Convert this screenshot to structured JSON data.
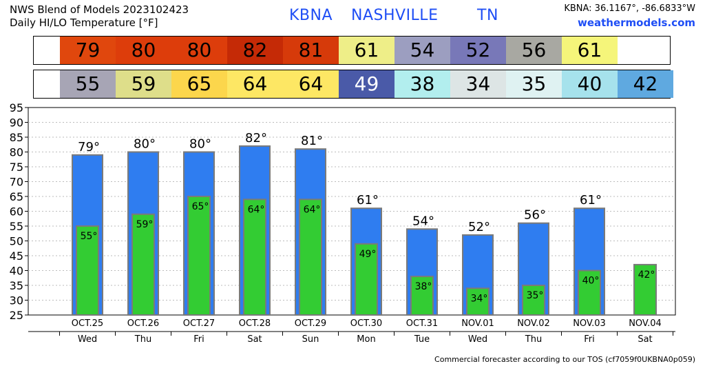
{
  "header": {
    "title_line1": "NWS Blend of Models 2023102423",
    "title_line2": "Daily HI/LO Temperature [°F]",
    "station": "KBNA",
    "city": "NASHVILLE",
    "state": "TN",
    "coords": "KBNA: 36.1167°, -86.6833°W",
    "site": "weathermodels.com"
  },
  "footer": "Commercial forecaster according to our TOS (cf7059f0UKBNA0p059)",
  "colors": {
    "high_bar": "#2f7df0",
    "low_bar": "#33cc33",
    "bar_edge": "#7a7a7a",
    "grid": "#bbbbbb"
  },
  "high_band": [
    {
      "value": "79",
      "color": "#e0470d"
    },
    {
      "value": "80",
      "color": "#dd3d0b"
    },
    {
      "value": "80",
      "color": "#dd3d0b"
    },
    {
      "value": "82",
      "color": "#c52a06"
    },
    {
      "value": "81",
      "color": "#d63a0a"
    },
    {
      "value": "61",
      "color": "#eeee88"
    },
    {
      "value": "54",
      "color": "#9c9ec0"
    },
    {
      "value": "52",
      "color": "#7878b8"
    },
    {
      "value": "56",
      "color": "#a8a8a2"
    },
    {
      "value": "61",
      "color": "#f5f57a"
    }
  ],
  "low_band": [
    {
      "value": "55",
      "color": "#a7a5b5"
    },
    {
      "value": "59",
      "color": "#dede8a"
    },
    {
      "value": "65",
      "color": "#fcd64c"
    },
    {
      "value": "64",
      "color": "#fde764"
    },
    {
      "value": "64",
      "color": "#fde764"
    },
    {
      "value": "49",
      "color": "#4a5aa8",
      "text_light": true
    },
    {
      "value": "38",
      "color": "#b2eeee"
    },
    {
      "value": "34",
      "color": "#dde5e5"
    },
    {
      "value": "35",
      "color": "#dff2f2"
    },
    {
      "value": "40",
      "color": "#a6e2ec"
    },
    {
      "value": "42",
      "color": "#5fa9e0"
    }
  ],
  "chart_data": {
    "type": "bar",
    "title": "Daily HI/LO Temperature [°F]",
    "xlabel": "",
    "ylabel": "",
    "ylim": [
      25,
      95
    ],
    "yticks": [
      25,
      30,
      35,
      40,
      45,
      50,
      55,
      60,
      65,
      70,
      75,
      80,
      85,
      90,
      95
    ],
    "grid": true,
    "categories": [
      "OCT.25",
      "OCT.26",
      "OCT.27",
      "OCT.28",
      "OCT.29",
      "OCT.30",
      "OCT.31",
      "NOV.01",
      "NOV.02",
      "NOV.03",
      "NOV.04"
    ],
    "weekdays": [
      "Wed",
      "Thu",
      "Fri",
      "Sat",
      "Sun",
      "Mon",
      "Tue",
      "Wed",
      "Thu",
      "Fri",
      "Sat"
    ],
    "degree_symbol": "°",
    "series": [
      {
        "values": [
          79,
          80,
          80,
          82,
          81,
          61,
          54,
          52,
          56,
          61,
          null
        ]
      },
      {
        "values": [
          55,
          59,
          65,
          64,
          64,
          49,
          38,
          34,
          35,
          40,
          42
        ]
      }
    ]
  }
}
